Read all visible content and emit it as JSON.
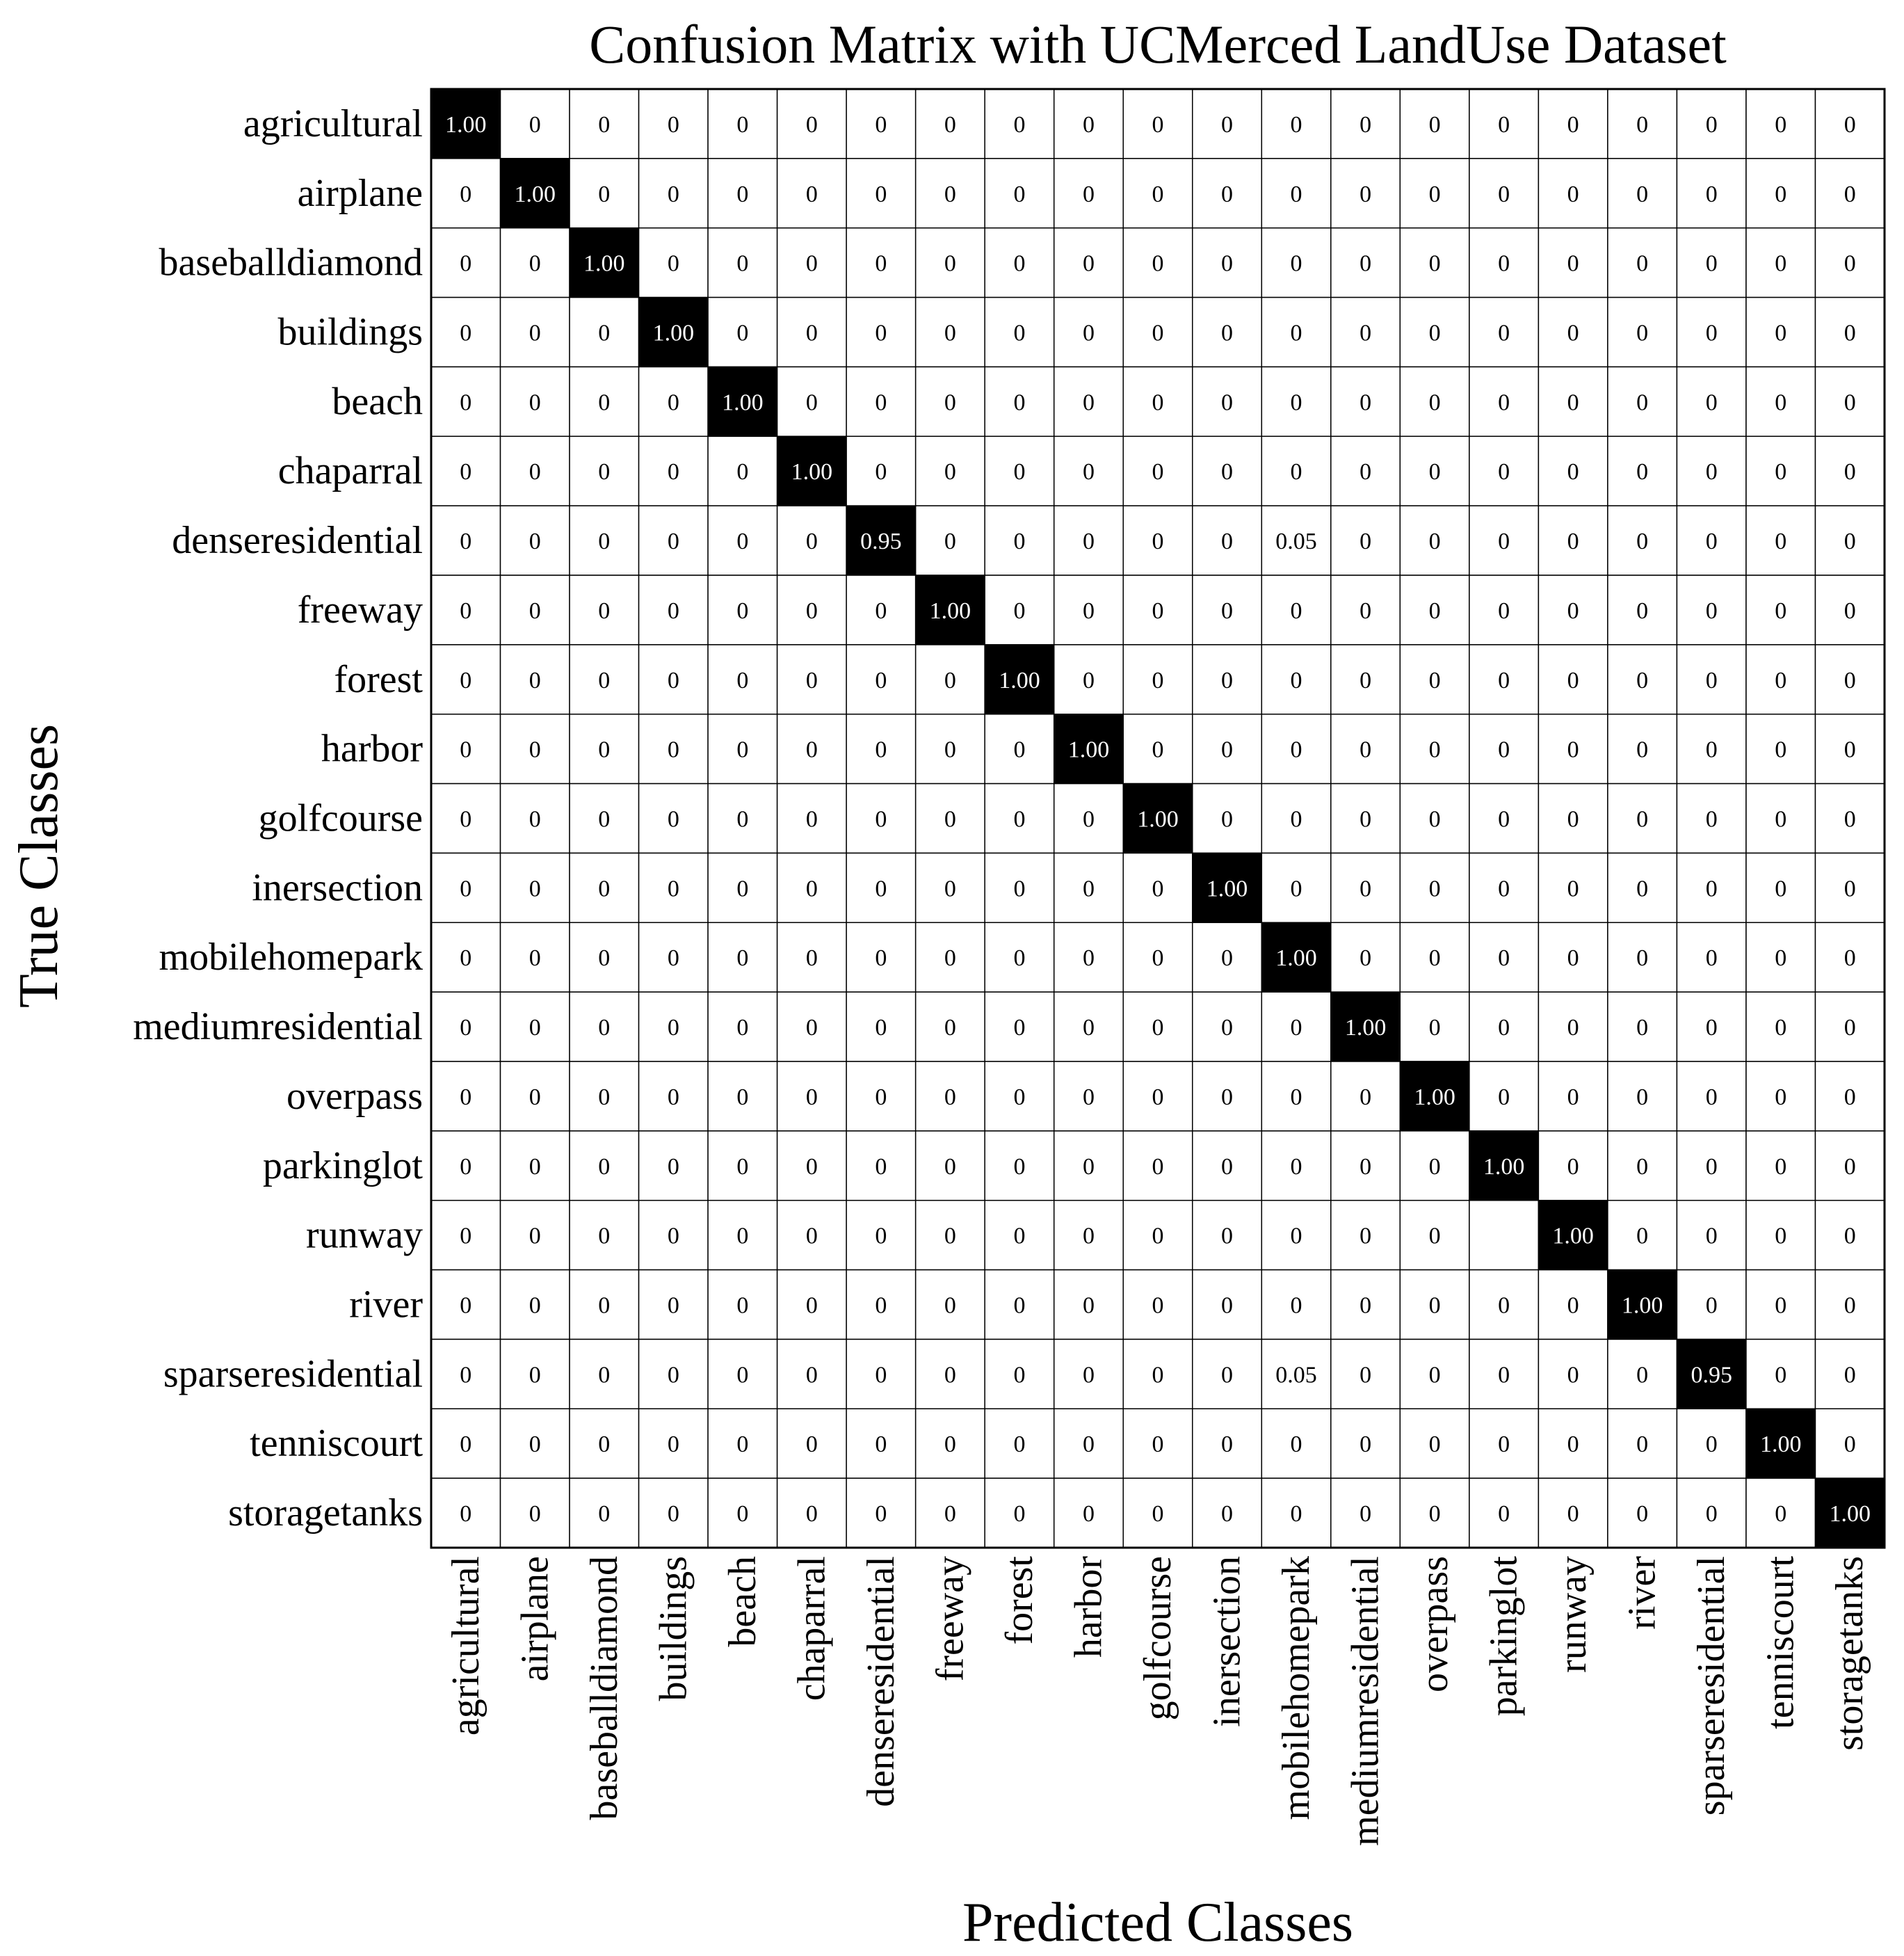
{
  "chart_data": {
    "type": "heatmap",
    "title": "Confusion Matrix with UCMerced LandUse Dataset",
    "xlabel": "Predicted Classes",
    "ylabel": "True Classes",
    "row_labels": [
      "agricultural",
      "airplane",
      "baseballdiamond",
      "buildings",
      "beach",
      "chaparral",
      "denseresidential",
      "freeway",
      "forest",
      "harbor",
      "golfcourse",
      "inersection",
      "mobilehomepark",
      "mediumresidential",
      "overpass",
      "parkinglot",
      "runway",
      "river",
      "sparseresidential",
      "tenniscourt",
      "storagetanks"
    ],
    "col_labels": [
      "agricultural",
      "airplane",
      "baseballdiamond",
      "buildings",
      "beach",
      "chaparral",
      "denseresidential",
      "freeway",
      "forest",
      "harbor",
      "golfcourse",
      "inersection",
      "mobilehomepark",
      "mediumresidential",
      "overpass",
      "parkinglot",
      "runway",
      "river",
      "sparseresidential",
      "tenniscourt",
      "storagetanks"
    ],
    "cells": [
      [
        "1.00",
        "0",
        "0",
        "0",
        "0",
        "0",
        "0",
        "0",
        "0",
        "0",
        "0",
        "0",
        "0",
        "0",
        "0",
        "0",
        "0",
        "0",
        "0",
        "0",
        "0"
      ],
      [
        "0",
        "1.00",
        "0",
        "0",
        "0",
        "0",
        "0",
        "0",
        "0",
        "0",
        "0",
        "0",
        "0",
        "0",
        "0",
        "0",
        "0",
        "0",
        "0",
        "0",
        "0"
      ],
      [
        "0",
        "0",
        "1.00",
        "0",
        "0",
        "0",
        "0",
        "0",
        "0",
        "0",
        "0",
        "0",
        "0",
        "0",
        "0",
        "0",
        "0",
        "0",
        "0",
        "0",
        "0"
      ],
      [
        "0",
        "0",
        "0",
        "1.00",
        "0",
        "0",
        "0",
        "0",
        "0",
        "0",
        "0",
        "0",
        "0",
        "0",
        "0",
        "0",
        "0",
        "0",
        "0",
        "0",
        "0"
      ],
      [
        "0",
        "0",
        "0",
        "0",
        "1.00",
        "0",
        "0",
        "0",
        "0",
        "0",
        "0",
        "0",
        "0",
        "0",
        "0",
        "0",
        "0",
        "0",
        "0",
        "0",
        "0"
      ],
      [
        "0",
        "0",
        "0",
        "0",
        "0",
        "1.00",
        "0",
        "0",
        "0",
        "0",
        "0",
        "0",
        "0",
        "0",
        "0",
        "0",
        "0",
        "0",
        "0",
        "0",
        "0"
      ],
      [
        "0",
        "0",
        "0",
        "0",
        "0",
        "0",
        "0.95",
        "0",
        "0",
        "0",
        "0",
        "0",
        "0.05",
        "0",
        "0",
        "0",
        "0",
        "0",
        "0",
        "0",
        "0"
      ],
      [
        "0",
        "0",
        "0",
        "0",
        "0",
        "0",
        "0",
        "1.00",
        "0",
        "0",
        "0",
        "0",
        "0",
        "0",
        "0",
        "0",
        "0",
        "0",
        "0",
        "0",
        "0"
      ],
      [
        "0",
        "0",
        "0",
        "0",
        "0",
        "0",
        "0",
        "0",
        "1.00",
        "0",
        "0",
        "0",
        "0",
        "0",
        "0",
        "0",
        "0",
        "0",
        "0",
        "0",
        "0"
      ],
      [
        "0",
        "0",
        "0",
        "0",
        "0",
        "0",
        "0",
        "0",
        "0",
        "1.00",
        "0",
        "0",
        "0",
        "0",
        "0",
        "0",
        "0",
        "0",
        "0",
        "0",
        "0"
      ],
      [
        "0",
        "0",
        "0",
        "0",
        "0",
        "0",
        "0",
        "0",
        "0",
        "0",
        "1.00",
        "0",
        "0",
        "0",
        "0",
        "0",
        "0",
        "0",
        "0",
        "0",
        "0"
      ],
      [
        "0",
        "0",
        "0",
        "0",
        "0",
        "0",
        "0",
        "0",
        "0",
        "0",
        "0",
        "1.00",
        "0",
        "0",
        "0",
        "0",
        "0",
        "0",
        "0",
        "0",
        "0"
      ],
      [
        "0",
        "0",
        "0",
        "0",
        "0",
        "0",
        "0",
        "0",
        "0",
        "0",
        "0",
        "0",
        "1.00",
        "0",
        "0",
        "0",
        "0",
        "0",
        "0",
        "0",
        "0"
      ],
      [
        "0",
        "0",
        "0",
        "0",
        "0",
        "0",
        "0",
        "0",
        "0",
        "0",
        "0",
        "0",
        "0",
        "1.00",
        "0",
        "0",
        "0",
        "0",
        "0",
        "0",
        "0"
      ],
      [
        "0",
        "0",
        "0",
        "0",
        "0",
        "0",
        "0",
        "0",
        "0",
        "0",
        "0",
        "0",
        "0",
        "0",
        "1.00",
        "0",
        "0",
        "0",
        "0",
        "0",
        "0"
      ],
      [
        "0",
        "0",
        "0",
        "0",
        "0",
        "0",
        "0",
        "0",
        "0",
        "0",
        "0",
        "0",
        "0",
        "0",
        "0",
        "1.00",
        "0",
        "0",
        "0",
        "0",
        "0"
      ],
      [
        "0",
        "0",
        "0",
        "0",
        "0",
        "0",
        "0",
        "0",
        "0",
        "0",
        "0",
        "0",
        "0",
        "0",
        "0",
        "",
        "1.00",
        "0",
        "0",
        "0",
        "0"
      ],
      [
        "0",
        "0",
        "0",
        "0",
        "0",
        "0",
        "0",
        "0",
        "0",
        "0",
        "0",
        "0",
        "0",
        "0",
        "0",
        "0",
        "0",
        "1.00",
        "0",
        "0",
        "0"
      ],
      [
        "0",
        "0",
        "0",
        "0",
        "0",
        "0",
        "0",
        "0",
        "0",
        "0",
        "0",
        "0",
        "0.05",
        "0",
        "0",
        "0",
        "0",
        "0",
        "0.95",
        "0",
        "0"
      ],
      [
        "0",
        "0",
        "0",
        "0",
        "0",
        "0",
        "0",
        "0",
        "0",
        "0",
        "0",
        "0",
        "0",
        "0",
        "0",
        "0",
        "0",
        "0",
        "0",
        "1.00",
        "0"
      ],
      [
        "0",
        "0",
        "0",
        "0",
        "0",
        "0",
        "0",
        "0",
        "0",
        "0",
        "0",
        "0",
        "0",
        "0",
        "0",
        "0",
        "0",
        "0",
        "0",
        "0",
        "1.00"
      ]
    ],
    "colors": {
      "high": "#000000",
      "low": "#ffffff",
      "grid": "#000000"
    },
    "grid": true
  }
}
